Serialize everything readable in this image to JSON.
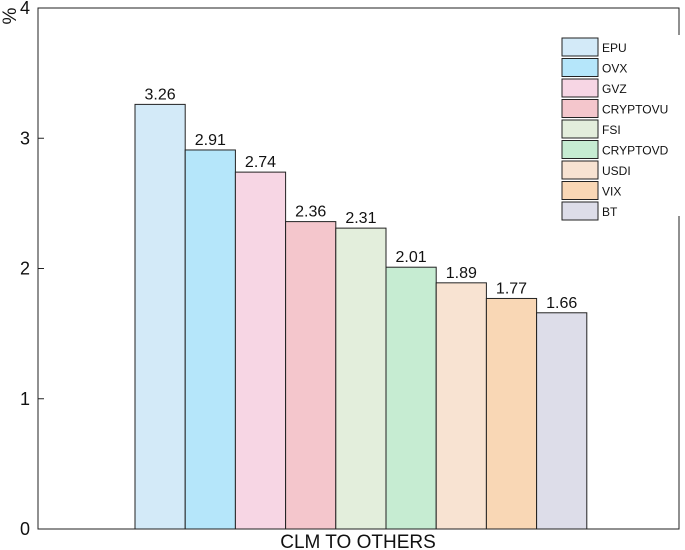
{
  "chart_data": {
    "type": "bar",
    "title": "",
    "ylabel": "%",
    "xlabel": "CLM TO OTHERS",
    "ylim": [
      0,
      4
    ],
    "yticks": [
      0,
      1,
      2,
      3,
      4
    ],
    "grid": false,
    "legend_position": "top-right",
    "categories": [
      "EPU",
      "OVX",
      "GVZ",
      "CRYPTOVU",
      "FSI",
      "CRYPTOVD",
      "USDI",
      "VIX",
      "BT"
    ],
    "values": [
      3.26,
      2.91,
      2.74,
      2.36,
      2.31,
      2.01,
      1.89,
      1.77,
      1.66
    ],
    "value_labels": [
      "3.26",
      "2.91",
      "2.74",
      "2.36",
      "2.31",
      "2.01",
      "1.89",
      "1.77",
      "1.66"
    ],
    "colors": [
      "#d3eaf8",
      "#b5e6fa",
      "#f7d6e4",
      "#f4c6cc",
      "#e3eedc",
      "#c6ecd2",
      "#f8e3d2",
      "#f9d7b5",
      "#dddde9"
    ]
  }
}
